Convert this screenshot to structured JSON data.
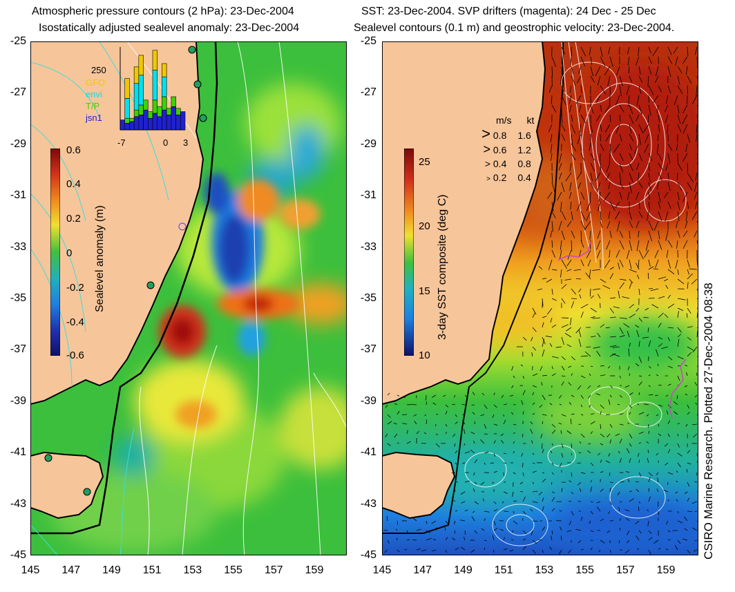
{
  "left_panel": {
    "title_line1": "Atmospheric pressure contours (2 hPa): 23-Dec-2004",
    "title_line2": "Isostatically adjusted sealevel anomaly: 23-Dec-2004",
    "colorbar_label": "Sealevel anomaly (m)",
    "colorbar_ticks": [
      "0.6",
      "0.4",
      "0.2",
      "0",
      "-0.2",
      "-0.4",
      "-0.6"
    ],
    "inset": {
      "ymax_label": "250",
      "legend": [
        {
          "name": "GFO",
          "color": "#f0c800"
        },
        {
          "name": "envi",
          "color": "#00e0f0"
        },
        {
          "name": "T/P",
          "color": "#40d000"
        },
        {
          "name": "jsn1",
          "color": "#2020d0"
        }
      ],
      "x_ticks": [
        "-7",
        "0",
        "3"
      ],
      "series": [
        {
          "name": "jsn1",
          "values": [
            30,
            20,
            25,
            40,
            45,
            60,
            35,
            50,
            40,
            60,
            45,
            70,
            45,
            55
          ]
        },
        {
          "name": "T/P",
          "values": [
            0,
            15,
            10,
            20,
            30,
            30,
            20,
            40,
            30,
            40,
            20,
            30,
            20,
            0
          ]
        },
        {
          "name": "envi",
          "values": [
            0,
            60,
            0,
            80,
            90,
            0,
            0,
            90,
            0,
            60,
            0,
            0,
            0,
            0
          ]
        },
        {
          "name": "GFO",
          "values": [
            0,
            60,
            0,
            50,
            60,
            0,
            0,
            60,
            0,
            40,
            0,
            0,
            0,
            0
          ]
        }
      ]
    }
  },
  "right_panel": {
    "title_line1": "SST: 23-Dec-2004. SVP drifters (magenta): 24 Dec - 25 Dec",
    "title_line2": "Sealevel contours (0.1 m) and geostrophic velocity: 23-Dec-2004.",
    "colorbar_label": "3-day SST composite (deg C)",
    "colorbar_ticks": [
      "25",
      "20",
      "15",
      "10"
    ],
    "velocity_legend": {
      "header": [
        "m/s",
        "kt"
      ],
      "rows": [
        [
          "0.8",
          "1.6"
        ],
        [
          "0.6",
          "1.2"
        ],
        [
          "0.4",
          "0.8"
        ],
        [
          "0.2",
          "0.4"
        ]
      ]
    }
  },
  "axes": {
    "lat_ticks": [
      "-25",
      "-27",
      "-29",
      "-31",
      "-33",
      "-35",
      "-37",
      "-39",
      "-41",
      "-43",
      "-45"
    ],
    "lon_ticks": [
      "145",
      "147",
      "149",
      "151",
      "153",
      "155",
      "157",
      "159"
    ]
  },
  "credit": "CSIRO Marine Research. Plotted 27-Dec-2004 08:38",
  "colors": {
    "land": "#f7c59a",
    "coast": "#000000",
    "drifter": "#d040d0",
    "contour": "#ffffff"
  }
}
